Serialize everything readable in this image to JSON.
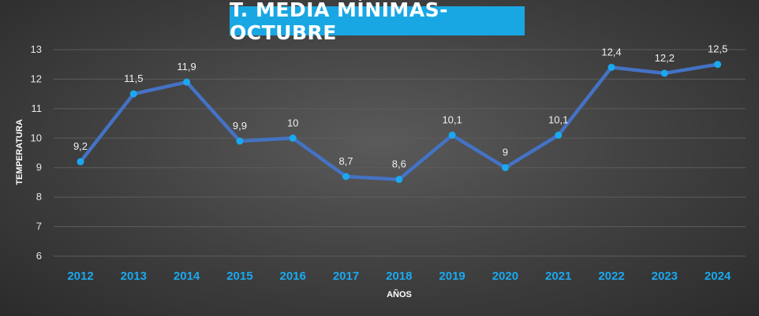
{
  "chart_data": {
    "type": "line",
    "title": "T. MEDIA MÍNIMAS-OCTUBRE",
    "xlabel": "AÑOS",
    "ylabel": "TEMPERATURA",
    "ylim": [
      6,
      13
    ],
    "yticks": [
      6,
      7,
      8,
      9,
      10,
      11,
      12,
      13
    ],
    "grid": true,
    "categories": [
      "2012",
      "2013",
      "2014",
      "2015",
      "2016",
      "2017",
      "2018",
      "2019",
      "2020",
      "2021",
      "2022",
      "2023",
      "2024"
    ],
    "series": [
      {
        "values": [
          9.2,
          11.5,
          11.9,
          9.9,
          10,
          8.7,
          8.6,
          10.1,
          9,
          10.1,
          12.4,
          12.2,
          12.5
        ],
        "labels": [
          "9,2",
          "11,5",
          "11,9",
          "9,9",
          "10",
          "8,7",
          "8,6",
          "10,1",
          "9",
          "10,1",
          "12,4",
          "12,2",
          "12,5"
        ],
        "line_color": "#4472c4",
        "marker_color": "#1aa9f0"
      }
    ],
    "colors": {
      "title_bg": "#19a7e3",
      "tick_x": "#1aa9f0",
      "grid": "#5c5c5c"
    }
  }
}
